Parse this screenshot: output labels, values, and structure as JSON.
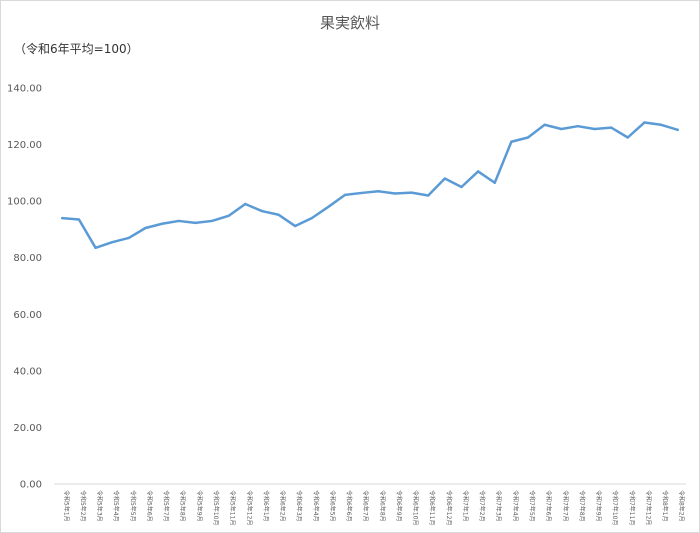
{
  "chart_data": {
    "type": "line",
    "title": "果実飲料",
    "unit_label": "（令和6年平均=100）",
    "ylim": [
      0,
      140
    ],
    "yticks": [
      "0.00",
      "20.00",
      "40.00",
      "60.00",
      "80.00",
      "100.00",
      "120.00",
      "140.00"
    ],
    "grid": false,
    "line_color": "#5b9bd5",
    "categories": [
      "令和5年1月",
      "令和5年2月",
      "令和5年3月",
      "令和5年4月",
      "令和5年5月",
      "令和5年6月",
      "令和5年7月",
      "令和5年8月",
      "令和5年9月",
      "令和5年10月",
      "令和5年11月",
      "令和5年12月",
      "令和6年1月",
      "令和6年2月",
      "令和6年3月",
      "令和6年4月",
      "令和6年5月",
      "令和6年6月",
      "令和6年7月",
      "令和6年8月",
      "令和6年9月",
      "令和6年10月",
      "令和6年11月",
      "令和6年12月",
      "令和7年1月",
      "令和7年2月",
      "令和7年3月",
      "令和7年4月",
      "令和7年5月",
      "令和7年6月",
      "令和7年7月",
      "令和7年8月",
      "令和7年9月",
      "令和7年10月",
      "令和7年11月",
      "令和7年12月",
      "令和8年1月",
      "令和8年2月"
    ],
    "values": [
      94.0,
      93.5,
      83.5,
      85.5,
      87.0,
      90.5,
      92.0,
      93.0,
      92.3,
      93.0,
      94.8,
      99.0,
      96.5,
      95.2,
      91.2,
      94.0,
      98.0,
      102.2,
      102.9,
      103.5,
      102.7,
      103.0,
      102.0,
      108.0,
      105.0,
      110.5,
      106.5,
      121.0,
      122.5,
      127.0,
      125.5,
      126.5,
      125.5,
      126.0,
      122.5,
      127.8,
      127.0,
      125.2
    ]
  }
}
